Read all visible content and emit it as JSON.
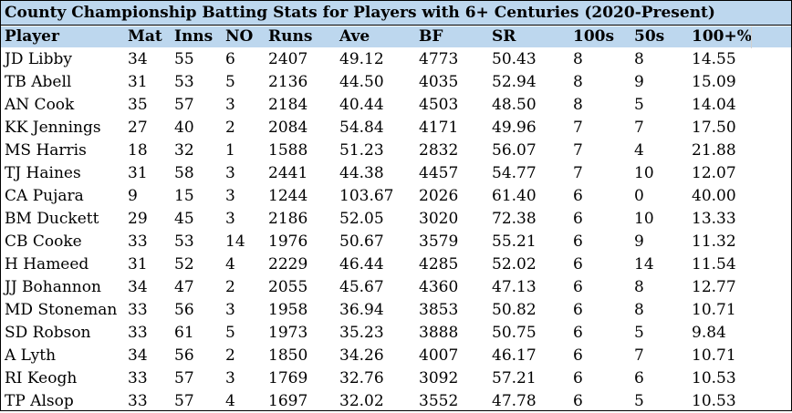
{
  "title": "County Championship Batting Stats  for Players with 6+ Centuries (2020-Present)",
  "columns": [
    "Player",
    "Mat",
    "Inns",
    "NO",
    "Runs",
    "Ave",
    "BF",
    "SR",
    "100s",
    "50s",
    "100+%"
  ],
  "rows": [
    [
      "JD Libby",
      "34",
      "55",
      "6",
      "2407",
      "49.12",
      "4773",
      "50.43",
      "8",
      "8",
      "14.55"
    ],
    [
      "TB Abell",
      "31",
      "53",
      "5",
      "2136",
      "44.50",
      "4035",
      "52.94",
      "8",
      "9",
      "15.09"
    ],
    [
      "AN Cook",
      "35",
      "57",
      "3",
      "2184",
      "40.44",
      "4503",
      "48.50",
      "8",
      "5",
      "14.04"
    ],
    [
      "KK Jennings",
      "27",
      "40",
      "2",
      "2084",
      "54.84",
      "4171",
      "49.96",
      "7",
      "7",
      "17.50"
    ],
    [
      "MS Harris",
      "18",
      "32",
      "1",
      "1588",
      "51.23",
      "2832",
      "56.07",
      "7",
      "4",
      "21.88"
    ],
    [
      "TJ Haines",
      "31",
      "58",
      "3",
      "2441",
      "44.38",
      "4457",
      "54.77",
      "7",
      "10",
      "12.07"
    ],
    [
      "CA Pujara",
      "9",
      "15",
      "3",
      "1244",
      "103.67",
      "2026",
      "61.40",
      "6",
      "0",
      "40.00"
    ],
    [
      "BM Duckett",
      "29",
      "45",
      "3",
      "2186",
      "52.05",
      "3020",
      "72.38",
      "6",
      "10",
      "13.33"
    ],
    [
      "CB Cooke",
      "33",
      "53",
      "14",
      "1976",
      "50.67",
      "3579",
      "55.21",
      "6",
      "9",
      "11.32"
    ],
    [
      "H Hameed",
      "31",
      "52",
      "4",
      "2229",
      "46.44",
      "4285",
      "52.02",
      "6",
      "14",
      "11.54"
    ],
    [
      "JJ Bohannon",
      "34",
      "47",
      "2",
      "2055",
      "45.67",
      "4360",
      "47.13",
      "6",
      "8",
      "12.77"
    ],
    [
      "MD Stoneman",
      "33",
      "56",
      "3",
      "1958",
      "36.94",
      "3853",
      "50.82",
      "6",
      "8",
      "10.71"
    ],
    [
      "SD Robson",
      "33",
      "61",
      "5",
      "1973",
      "35.23",
      "3888",
      "50.75",
      "6",
      "5",
      "9.84"
    ],
    [
      "A Lyth",
      "34",
      "56",
      "2",
      "1850",
      "34.26",
      "4007",
      "46.17",
      "6",
      "7",
      "10.71"
    ],
    [
      "RI Keogh",
      "33",
      "57",
      "3",
      "1769",
      "32.76",
      "3092",
      "57.21",
      "6",
      "6",
      "10.53"
    ],
    [
      "TP Alsop",
      "33",
      "57",
      "4",
      "1697",
      "32.02",
      "3552",
      "47.78",
      "6",
      "5",
      "10.53"
    ]
  ]
}
